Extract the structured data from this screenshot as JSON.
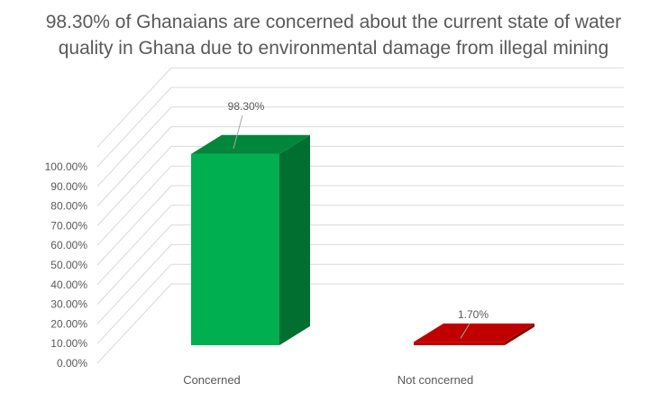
{
  "chart_data": {
    "type": "bar",
    "title": "98.30% of Ghanaians are concerned about the current state of water quality in Ghana due to environmental damage from illegal mining",
    "categories": [
      "Concerned",
      "Not concerned"
    ],
    "values": [
      98.3,
      1.7
    ],
    "data_labels": [
      "98.30%",
      "1.70%"
    ],
    "ylim": [
      0,
      100
    ],
    "yticks": [
      "0.00%",
      "10.00%",
      "20.00%",
      "30.00%",
      "40.00%",
      "50.00%",
      "60.00%",
      "70.00%",
      "80.00%",
      "90.00%",
      "100.00%"
    ],
    "grid": true,
    "style": "3d-column",
    "legend": "none",
    "colors": {
      "Concerned": {
        "front": "#00b050",
        "top": "#00873b",
        "side": "#006f30"
      },
      "Not concerned": {
        "front": "#c00000",
        "top": "#c00000",
        "side": "#900000"
      },
      "gridline": "#d9d9d9",
      "text": "#595959"
    }
  }
}
